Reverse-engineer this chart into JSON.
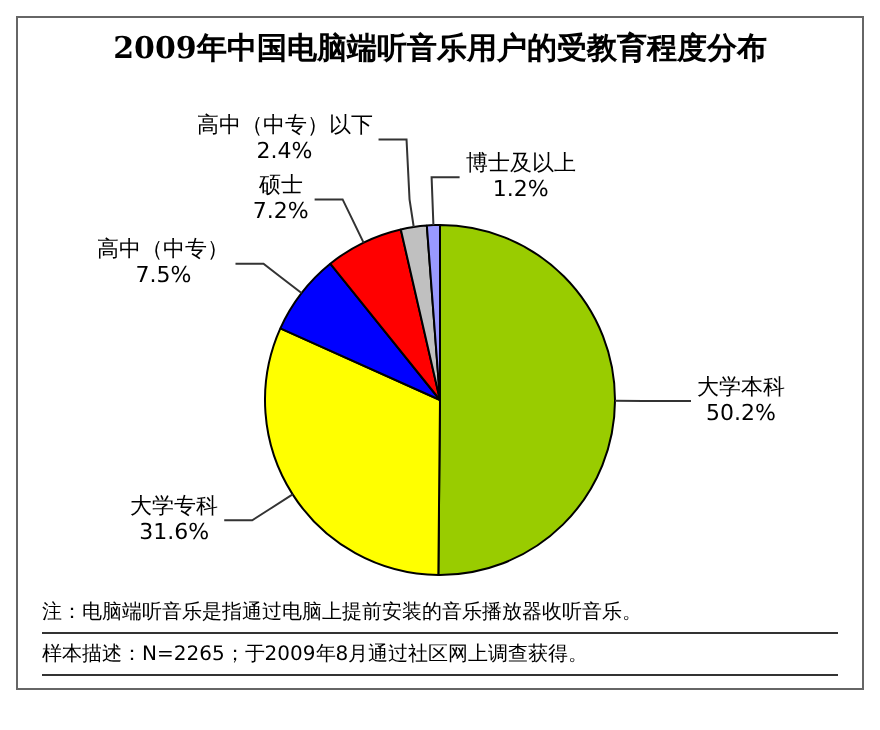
{
  "chart_data": {
    "type": "pie",
    "title": "2009年中国电脑端听音乐用户的受教育程度分布",
    "categories": [
      "大学本科",
      "大学专科",
      "高中（中专）",
      "硕士",
      "高中（中专）以下",
      "博士及以上"
    ],
    "values": [
      50.2,
      31.6,
      7.5,
      7.2,
      2.4,
      1.2
    ],
    "value_labels": [
      "50.2%",
      "31.6%",
      "7.5%",
      "7.2%",
      "2.4%",
      "1.2%"
    ],
    "colors": [
      "#99cc00",
      "#ffff00",
      "#0000ff",
      "#ff0000",
      "#c0c0c0",
      "#9999ff"
    ],
    "annotations": [
      "注：电脑端听音乐是指通过电脑上提前安装的音乐播放器收听音乐。",
      "样本描述：N=2265；于2009年8月通过社区网上调查获得。"
    ],
    "legend": false
  }
}
